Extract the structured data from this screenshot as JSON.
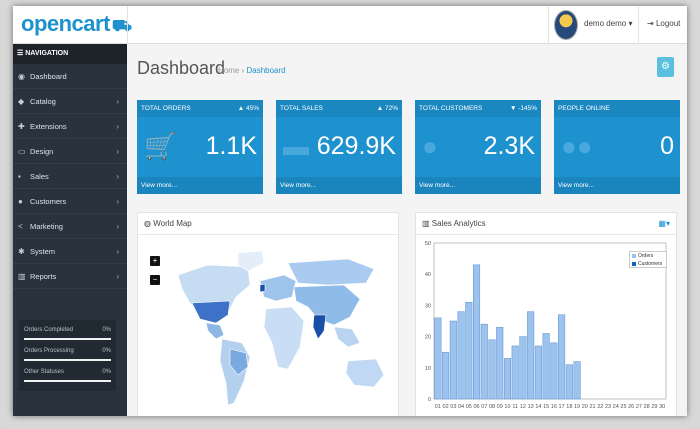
{
  "header": {
    "logo": "opencart",
    "user_name": "demo demo",
    "logout_label": "Logout"
  },
  "sidebar": {
    "nav_title": "NAVIGATION",
    "items": [
      {
        "label": "Dashboard",
        "icon": "dashboard-icon",
        "glyph": "◉",
        "has_arrow": false
      },
      {
        "label": "Catalog",
        "icon": "tag-icon",
        "glyph": "◆",
        "has_arrow": true
      },
      {
        "label": "Extensions",
        "icon": "puzzle-icon",
        "glyph": "✚",
        "has_arrow": true
      },
      {
        "label": "Design",
        "icon": "monitor-icon",
        "glyph": "▭",
        "has_arrow": true
      },
      {
        "label": "Sales",
        "icon": "cart-icon",
        "glyph": "▪",
        "has_arrow": true
      },
      {
        "label": "Customers",
        "icon": "user-icon",
        "glyph": "●",
        "has_arrow": true
      },
      {
        "label": "Marketing",
        "icon": "share-icon",
        "glyph": "<",
        "has_arrow": true
      },
      {
        "label": "System",
        "icon": "gear-icon",
        "glyph": "✱",
        "has_arrow": true
      },
      {
        "label": "Reports",
        "icon": "bar-chart-icon",
        "glyph": "▥",
        "has_arrow": true
      }
    ],
    "progress": [
      {
        "label": "Orders Completed",
        "percent": "0%",
        "value": 0
      },
      {
        "label": "Orders Processing",
        "percent": "0%",
        "value": 0
      },
      {
        "label": "Other Statuses",
        "percent": "0%",
        "value": 0
      }
    ]
  },
  "page": {
    "title": "Dashboard",
    "crumb_home": "Home",
    "crumb_sep": "›",
    "crumb_current": "Dashboard"
  },
  "tiles": [
    {
      "title": "TOTAL ORDERS",
      "change": "▲ 45%",
      "value": "1.1K",
      "footer": "View more...",
      "icon": "shopping-cart-icon"
    },
    {
      "title": "TOTAL SALES",
      "change": "▲ 72%",
      "value": "629.9K",
      "footer": "View more...",
      "icon": "credit-card-icon"
    },
    {
      "title": "TOTAL CUSTOMERS",
      "change": "▼ -145%",
      "value": "2.3K",
      "footer": "View more...",
      "icon": "user-icon"
    },
    {
      "title": "PEOPLE ONLINE",
      "change": "",
      "value": "0",
      "footer": "View more...",
      "icon": "users-icon"
    }
  ],
  "world_map": {
    "title": "World Map",
    "zoom_in": "+",
    "zoom_out": "−"
  },
  "sales_analytics": {
    "title": "Sales Analytics"
  },
  "chart_data": {
    "type": "bar",
    "title": "Sales Analytics",
    "categories": [
      "01",
      "02",
      "03",
      "04",
      "05",
      "06",
      "07",
      "08",
      "09",
      "10",
      "11",
      "12",
      "13",
      "14",
      "15",
      "16",
      "17",
      "18",
      "19",
      "20",
      "21",
      "22",
      "23",
      "24",
      "25",
      "26",
      "27",
      "28",
      "29",
      "30"
    ],
    "series": [
      {
        "name": "Orders",
        "color": "#9bc3ee",
        "values": [
          26,
          15,
          25,
          28,
          31,
          43,
          24,
          19,
          23,
          13,
          17,
          20,
          28,
          17,
          21,
          18,
          27,
          11,
          12,
          0,
          0,
          0,
          0,
          0,
          0,
          0,
          0,
          0,
          0,
          0
        ]
      },
      {
        "name": "Customers",
        "color": "#1065c0",
        "values": [
          0,
          0,
          0,
          0,
          0,
          0,
          0,
          0,
          0,
          0,
          0,
          0,
          0,
          0,
          0,
          0,
          0,
          0,
          0,
          0,
          0,
          0,
          0,
          0,
          0,
          0,
          0,
          0,
          0,
          0
        ]
      }
    ],
    "ylim": [
      0,
      50
    ],
    "yticks": [
      0,
      10,
      20,
      30,
      40,
      50
    ],
    "grid": false,
    "legend": "top-right"
  }
}
